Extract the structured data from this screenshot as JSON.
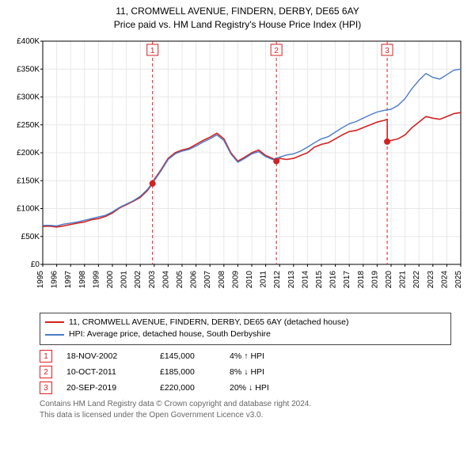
{
  "titles": {
    "line1": "11, CROMWELL AVENUE, FINDERN, DERBY, DE65 6AY",
    "line2": "Price paid vs. HM Land Registry's House Price Index (HPI)"
  },
  "chart": {
    "type": "line",
    "background_color": "#ffffff",
    "grid_color": "#e8e8e8",
    "axis_color": "#000000",
    "x": {
      "min": 1995,
      "max": 2025,
      "tick_step": 1,
      "ticks": [
        1995,
        1996,
        1997,
        1998,
        1999,
        2000,
        2001,
        2002,
        2003,
        2004,
        2005,
        2006,
        2007,
        2008,
        2009,
        2010,
        2011,
        2012,
        2013,
        2014,
        2015,
        2016,
        2017,
        2018,
        2019,
        2020,
        2021,
        2022,
        2023,
        2024,
        2025
      ]
    },
    "y": {
      "min": 0,
      "max": 400000,
      "tick_step": 50000,
      "tick_labels": [
        "£0",
        "£50K",
        "£100K",
        "£150K",
        "£200K",
        "£250K",
        "£300K",
        "£350K",
        "£400K"
      ]
    },
    "vlines": {
      "color": "#d22222",
      "dash": "4 3",
      "items": [
        {
          "x": 2002.88,
          "badge": "1"
        },
        {
          "x": 2011.77,
          "badge": "2"
        },
        {
          "x": 2019.72,
          "badge": "3"
        }
      ]
    },
    "markers": {
      "color": "#d22222",
      "radius": 4,
      "items": [
        {
          "x": 2002.88,
          "y": 145000
        },
        {
          "x": 2011.77,
          "y": 185000
        },
        {
          "x": 2019.72,
          "y": 220000
        }
      ]
    },
    "series": [
      {
        "name": "price_paid",
        "color": "#d22222",
        "width": 1.6,
        "points": [
          [
            1995.0,
            68000
          ],
          [
            1995.5,
            68500
          ],
          [
            1996.0,
            67000
          ],
          [
            1996.5,
            69000
          ],
          [
            1997.0,
            71500
          ],
          [
            1997.5,
            74000
          ],
          [
            1998.0,
            76000
          ],
          [
            1998.5,
            80000
          ],
          [
            1999.0,
            82000
          ],
          [
            1999.5,
            86000
          ],
          [
            2000.0,
            92000
          ],
          [
            2000.5,
            101000
          ],
          [
            2001.0,
            107000
          ],
          [
            2001.5,
            113000
          ],
          [
            2002.0,
            120000
          ],
          [
            2002.5,
            132000
          ],
          [
            2002.88,
            145000
          ],
          [
            2003.0,
            152000
          ],
          [
            2003.5,
            170000
          ],
          [
            2004.0,
            190000
          ],
          [
            2004.5,
            200000
          ],
          [
            2005.0,
            205000
          ],
          [
            2005.5,
            208000
          ],
          [
            2006.0,
            215000
          ],
          [
            2006.5,
            222000
          ],
          [
            2007.0,
            228000
          ],
          [
            2007.5,
            235000
          ],
          [
            2008.0,
            225000
          ],
          [
            2008.5,
            200000
          ],
          [
            2009.0,
            185000
          ],
          [
            2009.5,
            192000
          ],
          [
            2010.0,
            200000
          ],
          [
            2010.5,
            205000
          ],
          [
            2011.0,
            195000
          ],
          [
            2011.5,
            190000
          ],
          [
            2011.77,
            185000
          ],
          [
            2012.0,
            190000
          ],
          [
            2012.5,
            188000
          ],
          [
            2013.0,
            190000
          ],
          [
            2013.5,
            195000
          ],
          [
            2014.0,
            200000
          ],
          [
            2014.5,
            210000
          ],
          [
            2015.0,
            215000
          ],
          [
            2015.5,
            218000
          ],
          [
            2016.0,
            225000
          ],
          [
            2016.5,
            232000
          ],
          [
            2017.0,
            238000
          ],
          [
            2017.5,
            240000
          ],
          [
            2018.0,
            245000
          ],
          [
            2018.5,
            250000
          ],
          [
            2019.0,
            255000
          ],
          [
            2019.5,
            258000
          ],
          [
            2019.72,
            260000
          ],
          [
            2019.73,
            220000
          ],
          [
            2020.0,
            222000
          ],
          [
            2020.5,
            225000
          ],
          [
            2021.0,
            232000
          ],
          [
            2021.5,
            245000
          ],
          [
            2022.0,
            255000
          ],
          [
            2022.5,
            265000
          ],
          [
            2023.0,
            262000
          ],
          [
            2023.5,
            260000
          ],
          [
            2024.0,
            265000
          ],
          [
            2024.5,
            270000
          ],
          [
            2025.0,
            272000
          ]
        ]
      },
      {
        "name": "hpi",
        "color": "#4a7bc8",
        "width": 1.4,
        "points": [
          [
            1995.0,
            70000
          ],
          [
            1995.5,
            70000
          ],
          [
            1996.0,
            69000
          ],
          [
            1996.5,
            72000
          ],
          [
            1997.0,
            74000
          ],
          [
            1997.5,
            76000
          ],
          [
            1998.0,
            79000
          ],
          [
            1998.5,
            82000
          ],
          [
            1999.0,
            85000
          ],
          [
            1999.5,
            88000
          ],
          [
            2000.0,
            94000
          ],
          [
            2000.5,
            102000
          ],
          [
            2001.0,
            108000
          ],
          [
            2001.5,
            114000
          ],
          [
            2002.0,
            122000
          ],
          [
            2002.5,
            134000
          ],
          [
            2003.0,
            150000
          ],
          [
            2003.5,
            168000
          ],
          [
            2004.0,
            188000
          ],
          [
            2004.5,
            198000
          ],
          [
            2005.0,
            203000
          ],
          [
            2005.5,
            206000
          ],
          [
            2006.0,
            212000
          ],
          [
            2006.5,
            219000
          ],
          [
            2007.0,
            225000
          ],
          [
            2007.5,
            232000
          ],
          [
            2008.0,
            222000
          ],
          [
            2008.5,
            198000
          ],
          [
            2009.0,
            183000
          ],
          [
            2009.5,
            190000
          ],
          [
            2010.0,
            198000
          ],
          [
            2010.5,
            202000
          ],
          [
            2011.0,
            193000
          ],
          [
            2011.5,
            188000
          ],
          [
            2012.0,
            192000
          ],
          [
            2012.5,
            196000
          ],
          [
            2013.0,
            198000
          ],
          [
            2013.5,
            203000
          ],
          [
            2014.0,
            210000
          ],
          [
            2014.5,
            218000
          ],
          [
            2015.0,
            225000
          ],
          [
            2015.5,
            229000
          ],
          [
            2016.0,
            237000
          ],
          [
            2016.5,
            245000
          ],
          [
            2017.0,
            252000
          ],
          [
            2017.5,
            256000
          ],
          [
            2018.0,
            262000
          ],
          [
            2018.5,
            268000
          ],
          [
            2019.0,
            273000
          ],
          [
            2019.5,
            276000
          ],
          [
            2020.0,
            278000
          ],
          [
            2020.5,
            285000
          ],
          [
            2021.0,
            297000
          ],
          [
            2021.5,
            315000
          ],
          [
            2022.0,
            330000
          ],
          [
            2022.5,
            342000
          ],
          [
            2023.0,
            335000
          ],
          [
            2023.5,
            332000
          ],
          [
            2024.0,
            340000
          ],
          [
            2024.5,
            348000
          ],
          [
            2025.0,
            350000
          ]
        ]
      }
    ]
  },
  "legend": {
    "rows": [
      {
        "color": "#d22222",
        "label": "11, CROMWELL AVENUE, FINDERN, DERBY, DE65 6AY (detached house)"
      },
      {
        "color": "#4a7bc8",
        "label": "HPI: Average price, detached house, South Derbyshire"
      }
    ]
  },
  "annotations": [
    {
      "badge": "1",
      "date": "18-NOV-2002",
      "price": "£145,000",
      "delta_pct": "4%",
      "arrow": "↑",
      "delta_label": "HPI"
    },
    {
      "badge": "2",
      "date": "10-OCT-2011",
      "price": "£185,000",
      "delta_pct": "8%",
      "arrow": "↓",
      "delta_label": "HPI"
    },
    {
      "badge": "3",
      "date": "20-SEP-2019",
      "price": "£220,000",
      "delta_pct": "20%",
      "arrow": "↓",
      "delta_label": "HPI"
    }
  ],
  "footer": {
    "line1": "Contains HM Land Registry data © Crown copyright and database right 2024.",
    "line2": "This data is licensed under the Open Government Licence v3.0."
  }
}
